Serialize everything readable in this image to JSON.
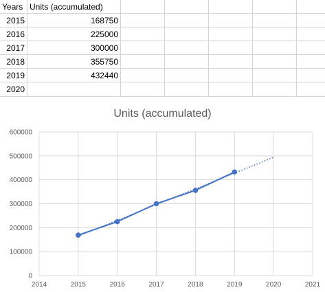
{
  "sheet": {
    "headers": [
      "Years",
      "Units (accumulated)"
    ],
    "rows": [
      {
        "year": "2015",
        "units": "168750"
      },
      {
        "year": "2016",
        "units": "225000"
      },
      {
        "year": "2017",
        "units": "300000"
      },
      {
        "year": "2018",
        "units": "355750"
      },
      {
        "year": "2019",
        "units": "432440"
      },
      {
        "year": "2020",
        "units": ""
      }
    ]
  },
  "chart_data": {
    "type": "scatter",
    "title": "Units (accumulated)",
    "x": [
      2015,
      2016,
      2017,
      2018,
      2019
    ],
    "y": [
      168750,
      225000,
      300000,
      355750,
      432440
    ],
    "xlim": [
      2014,
      2021
    ],
    "ylim": [
      0,
      600000
    ],
    "x_ticks": [
      2014,
      2015,
      2016,
      2017,
      2018,
      2019,
      2020,
      2021
    ],
    "y_ticks": [
      0,
      100000,
      200000,
      300000,
      400000,
      500000,
      600000
    ],
    "trendline": {
      "type": "linear",
      "forecast_to": 2020,
      "style": "dotted"
    },
    "grid": true,
    "legend": "none",
    "series_color": "#4472C4",
    "axis_text_color": "#595959",
    "gridline_color": "#d9d9d9"
  }
}
